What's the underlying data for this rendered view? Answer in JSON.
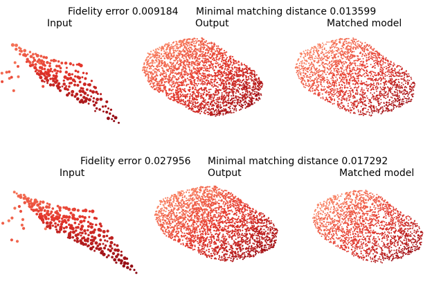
{
  "rows": [
    {
      "fidelity_label": "Fidelity error 0.009184",
      "matching_label": "Minimal matching distance 0.013599",
      "panels": [
        {
          "title": "Input"
        },
        {
          "title": "Output"
        },
        {
          "title": "Matched model"
        }
      ]
    },
    {
      "fidelity_label": "Fidelity error 0.027956",
      "matching_label": "Minimal matching distance 0.017292",
      "panels": [
        {
          "title": "Input"
        },
        {
          "title": "Output"
        },
        {
          "title": "Matched model"
        }
      ]
    }
  ],
  "colors": {
    "light": "#fc8d6a",
    "mid": "#e3342a",
    "dark": "#8b0812"
  }
}
